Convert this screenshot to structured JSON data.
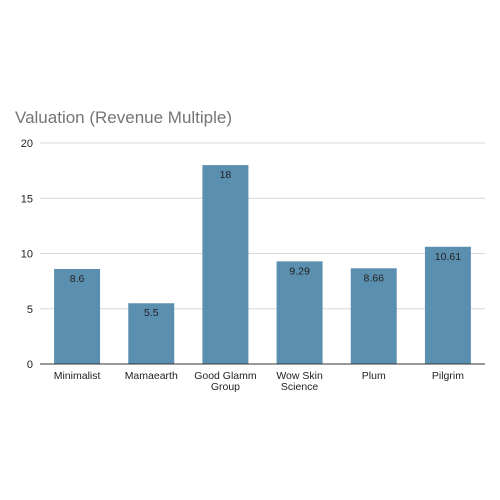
{
  "chart_data": {
    "type": "bar",
    "title": "Valuation (Revenue Multiple)",
    "xlabel": "",
    "ylabel": "",
    "categories": [
      "Minimalist",
      "Mamaearth",
      "Good Glamm Group",
      "Wow Skin Science",
      "Plum",
      "Pilgrim"
    ],
    "category_lines": [
      [
        "Minimalist"
      ],
      [
        "Mamaearth"
      ],
      [
        "Good Glamm",
        "Group"
      ],
      [
        "Wow Skin",
        "Science"
      ],
      [
        "Plum"
      ],
      [
        "Pilgrim"
      ]
    ],
    "values": [
      8.6,
      5.5,
      18,
      9.29,
      8.66,
      10.61
    ],
    "data_labels": [
      "8.6",
      "5.5",
      "18",
      "9.29",
      "8.66",
      "10.61"
    ],
    "ylim": [
      0,
      20
    ],
    "yticks": [
      0,
      5,
      10,
      15,
      20
    ],
    "grid": true,
    "legend": "none",
    "bar_color": "#5b8fb0",
    "grid_color": "#d9d9d9",
    "axis_color": "#333333",
    "title_color": "#757575"
  }
}
